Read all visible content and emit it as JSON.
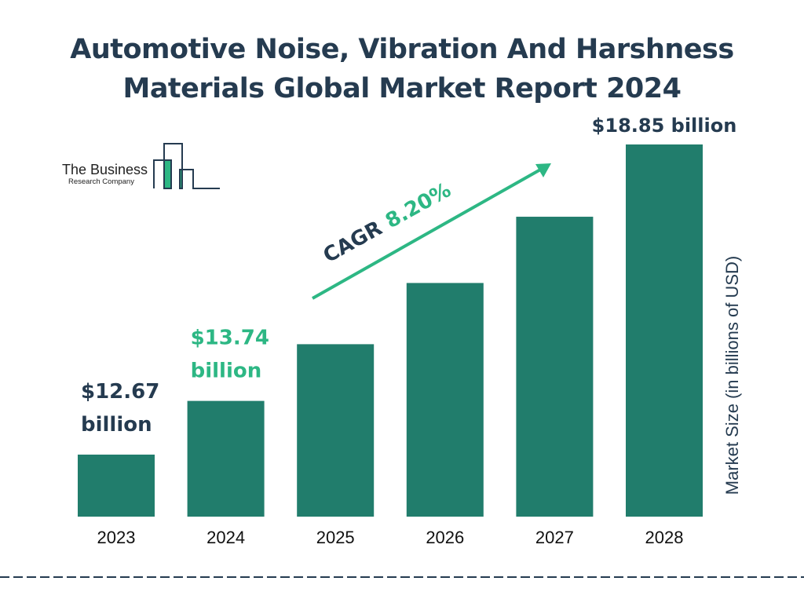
{
  "title": "Automotive Noise, Vibration And Harshness Materials Global Market Report 2024",
  "logo": {
    "line1": "The Business",
    "line2": "Research Company"
  },
  "colors": {
    "bar": "#217d6c",
    "accent": "#2db784",
    "dark": "#253b50"
  },
  "chart_data": {
    "type": "bar",
    "categories": [
      "2023",
      "2024",
      "2025",
      "2026",
      "2027",
      "2028"
    ],
    "values": [
      12.67,
      13.74,
      14.87,
      16.09,
      17.41,
      18.85
    ],
    "labels": [
      {
        "category": "2023",
        "line1": "$12.67",
        "line2": "billion"
      },
      {
        "category": "2024",
        "line1": "$13.74",
        "line2": "billion"
      },
      {
        "category": "2028",
        "line1": "$18.85 billion",
        "line2": ""
      }
    ],
    "ylabel": "Market Size (in billions of USD)",
    "grid": false,
    "annotation": {
      "prefix": "CAGR",
      "value": "8.20%"
    }
  }
}
